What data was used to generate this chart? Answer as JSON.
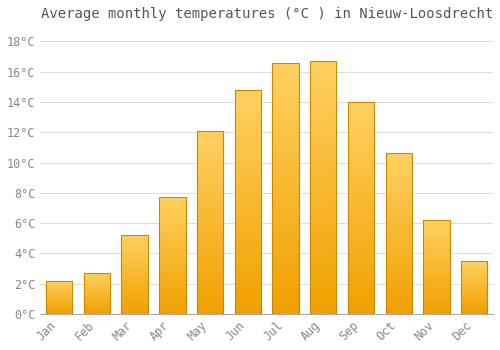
{
  "title": "Average monthly temperatures (°C ) in Nieuw-Loosdrecht",
  "months": [
    "Jan",
    "Feb",
    "Mar",
    "Apr",
    "May",
    "Jun",
    "Jul",
    "Aug",
    "Sep",
    "Oct",
    "Nov",
    "Dec"
  ],
  "values": [
    2.2,
    2.7,
    5.2,
    7.7,
    12.1,
    14.8,
    16.6,
    16.7,
    14.0,
    10.6,
    6.2,
    3.5
  ],
  "bar_color_bottom": "#F0A000",
  "bar_color_top": "#FFD060",
  "bar_edge_color": "#CC8800",
  "ylim": [
    0,
    19
  ],
  "yticks": [
    0,
    2,
    4,
    6,
    8,
    10,
    12,
    14,
    16,
    18
  ],
  "ytick_labels": [
    "0°C",
    "2°C",
    "4°C",
    "6°C",
    "8°C",
    "10°C",
    "12°C",
    "14°C",
    "16°C",
    "18°C"
  ],
  "background_color": "#ffffff",
  "grid_color": "#dddddd",
  "title_fontsize": 10,
  "tick_fontsize": 8.5,
  "bar_width": 0.7
}
